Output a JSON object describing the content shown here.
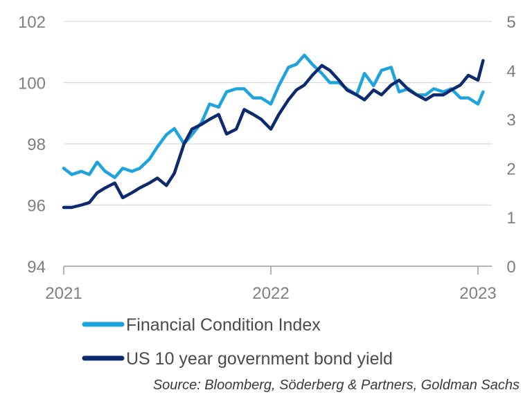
{
  "chart_data": {
    "type": "line",
    "title": "",
    "xlabel": "",
    "x_ticks": [
      "2021",
      "2022",
      "2023"
    ],
    "y_left": {
      "ylim": [
        94,
        102
      ],
      "ticks": [
        "94",
        "96",
        "98",
        "100",
        "102"
      ]
    },
    "y_right": {
      "ylim": [
        0,
        5
      ],
      "ticks": [
        "0",
        "1",
        "2",
        "3",
        "4",
        "5"
      ]
    },
    "grid": true,
    "legend_position": "bottom-left",
    "source": "Source: Bloomberg, Söderberg & Partners, Goldman Sachs",
    "series": [
      {
        "name": "Financial Condition Index",
        "axis": "left",
        "color": "#1fa3dc",
        "x": [
          "2021-01-01",
          "2021-01-15",
          "2021-02-01",
          "2021-02-15",
          "2021-03-01",
          "2021-03-15",
          "2021-04-01",
          "2021-04-15",
          "2021-05-01",
          "2021-05-15",
          "2021-06-01",
          "2021-06-15",
          "2021-07-01",
          "2021-07-15",
          "2021-08-01",
          "2021-08-15",
          "2021-09-01",
          "2021-09-15",
          "2021-10-01",
          "2021-10-15",
          "2021-11-01",
          "2021-11-15",
          "2021-12-01",
          "2021-12-15",
          "2022-01-01",
          "2022-01-15",
          "2022-02-01",
          "2022-02-15",
          "2022-03-01",
          "2022-03-15",
          "2022-04-01",
          "2022-04-15",
          "2022-05-01",
          "2022-05-15",
          "2022-06-01",
          "2022-06-15",
          "2022-07-01",
          "2022-07-15",
          "2022-08-01",
          "2022-08-15",
          "2022-09-01",
          "2022-09-15",
          "2022-10-01",
          "2022-10-15",
          "2022-11-01",
          "2022-11-15",
          "2022-12-01",
          "2022-12-15",
          "2023-01-01",
          "2023-01-10"
        ],
        "values": [
          97.2,
          97.0,
          97.1,
          97.0,
          97.4,
          97.1,
          96.9,
          97.2,
          97.1,
          97.2,
          97.5,
          97.9,
          98.3,
          98.5,
          98.0,
          98.3,
          98.7,
          99.3,
          99.2,
          99.7,
          99.8,
          99.8,
          99.5,
          99.5,
          99.3,
          99.9,
          100.5,
          100.6,
          100.9,
          100.6,
          100.3,
          100.0,
          100.0,
          99.8,
          99.6,
          100.3,
          99.9,
          100.4,
          100.5,
          99.7,
          99.8,
          99.6,
          99.6,
          99.8,
          99.7,
          99.8,
          99.5,
          99.5,
          99.3,
          99.7
        ]
      },
      {
        "name": "US 10 year government bond yield",
        "axis": "right",
        "color": "#0d2a6e",
        "x": [
          "2021-01-01",
          "2021-01-15",
          "2021-02-01",
          "2021-02-15",
          "2021-03-01",
          "2021-03-15",
          "2021-04-01",
          "2021-04-15",
          "2021-05-01",
          "2021-05-15",
          "2021-06-01",
          "2021-06-15",
          "2021-07-01",
          "2021-07-15",
          "2021-08-01",
          "2021-08-15",
          "2021-09-01",
          "2021-09-15",
          "2021-10-01",
          "2021-10-15",
          "2021-11-01",
          "2021-11-15",
          "2021-12-01",
          "2021-12-15",
          "2022-01-01",
          "2022-01-15",
          "2022-02-01",
          "2022-02-15",
          "2022-03-01",
          "2022-03-15",
          "2022-04-01",
          "2022-04-15",
          "2022-05-01",
          "2022-05-15",
          "2022-06-01",
          "2022-06-15",
          "2022-07-01",
          "2022-07-15",
          "2022-08-01",
          "2022-08-15",
          "2022-09-01",
          "2022-09-15",
          "2022-10-01",
          "2022-10-15",
          "2022-11-01",
          "2022-11-15",
          "2022-12-01",
          "2022-12-15",
          "2023-01-01",
          "2023-01-10"
        ],
        "values": [
          1.2,
          1.2,
          1.25,
          1.3,
          1.5,
          1.6,
          1.7,
          1.4,
          1.5,
          1.6,
          1.7,
          1.8,
          1.65,
          1.9,
          2.5,
          2.8,
          2.9,
          3.0,
          3.1,
          2.7,
          2.8,
          3.2,
          3.1,
          3.0,
          2.8,
          3.1,
          3.4,
          3.6,
          3.7,
          3.9,
          4.1,
          4.0,
          3.8,
          3.6,
          3.5,
          3.4,
          3.6,
          3.5,
          3.7,
          3.8,
          3.6,
          3.5,
          3.4,
          3.5,
          3.5,
          3.6,
          3.7,
          3.9,
          3.8,
          4.2
        ]
      }
    ]
  }
}
